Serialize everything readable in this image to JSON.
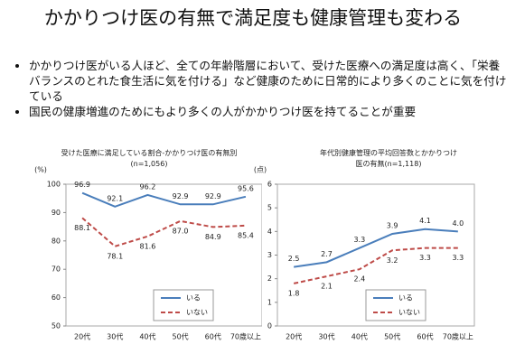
{
  "title": "かかりつけ医の有無で満足度も健康管理も変わる",
  "bullets": [
    "かかりつけ医がいる人ほど、全ての年齢階層において、受けた医療への満足度は高く、「栄養バランスのとれた食生活に気を付ける」など健康のために日常的により多くのことに気を付けている",
    "国民の健康増進のためにもより多くの人がかかりつけ医を持てることが重要"
  ],
  "chart_data": [
    {
      "type": "line",
      "title": "受けた医療に満足している割合-かかりつけ医の有無別",
      "subtitle": "(n=1,056)",
      "y_unit": "(%)",
      "categories": [
        "20代",
        "30代",
        "40代",
        "50代",
        "60代",
        "70歳以上"
      ],
      "series": [
        {
          "name": "いる",
          "color": "#4a7ebb",
          "dash": false,
          "values": [
            96.9,
            92.1,
            96.2,
            92.9,
            92.9,
            95.6
          ],
          "value_labels": [
            "96.9",
            "92.1",
            "96.2",
            "92.9",
            "92.9",
            "95.6"
          ]
        },
        {
          "name": "いない",
          "color": "#be4b48",
          "dash": true,
          "values": [
            88.1,
            78.1,
            81.6,
            87.0,
            84.9,
            85.4
          ],
          "value_labels": [
            "88.1",
            "78.1",
            "81.6",
            "87.0",
            "84.9",
            "85.4"
          ]
        }
      ],
      "ylim": [
        50,
        100
      ],
      "yticks": [
        50,
        60,
        70,
        80,
        90,
        100
      ],
      "grid": false
    },
    {
      "type": "line",
      "title": "年代別健康管理の平均回答数とかかりつけ医の有無",
      "subtitle": "(n=1,118)",
      "y_unit": "(点)",
      "categories": [
        "20代",
        "30代",
        "40代",
        "50代",
        "60代",
        "70歳以上"
      ],
      "series": [
        {
          "name": "いる",
          "color": "#4a7ebb",
          "dash": false,
          "values": [
            2.5,
            2.7,
            3.3,
            3.9,
            4.1,
            4.0
          ],
          "value_labels": [
            "2.5",
            "2.7",
            "3.3",
            "3.9",
            "4.1",
            "4.0"
          ]
        },
        {
          "name": "いない",
          "color": "#be4b48",
          "dash": true,
          "values": [
            1.8,
            2.1,
            2.4,
            3.2,
            3.3,
            3.3
          ],
          "value_labels": [
            "1.8",
            "2.1",
            "2.4",
            "3.2",
            "3.3",
            "3.3"
          ]
        }
      ],
      "ylim": [
        0,
        6
      ],
      "yticks": [
        0,
        1,
        2,
        3,
        4,
        5,
        6
      ],
      "grid": false
    }
  ]
}
